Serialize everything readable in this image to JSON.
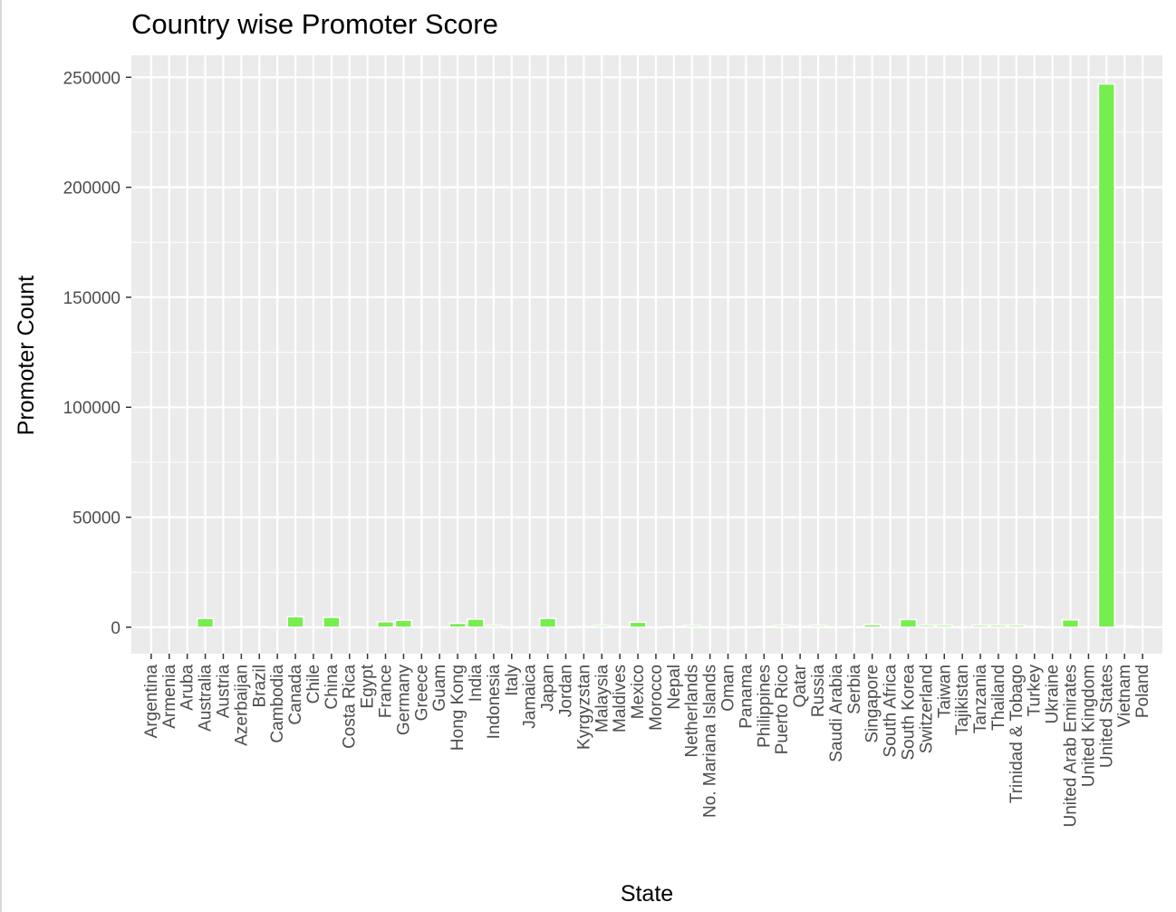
{
  "chart_data": {
    "type": "bar",
    "title": "Country wise Promoter Score",
    "xlabel": "State",
    "ylabel": "Promoter Count",
    "ylim": [
      -12000,
      260000
    ],
    "yticks": [
      0,
      50000,
      100000,
      150000,
      200000,
      250000
    ],
    "ytick_labels": [
      "0",
      "50000",
      "100000",
      "150000",
      "200000",
      "250000"
    ],
    "grid": true,
    "legend": "none",
    "bar_color": "#76ee4e",
    "bar_outline": "#ffffff",
    "panel_background": "#ebebeb",
    "grid_color": "#ffffff",
    "categories": [
      "Argentina",
      "Armenia",
      "Aruba",
      "Australia",
      "Austria",
      "Azerbaijan",
      "Brazil",
      "Cambodia",
      "Canada",
      "Chile",
      "China",
      "Costa Rica",
      "Egypt",
      "France",
      "Germany",
      "Greece",
      "Guam",
      "Hong Kong",
      "India",
      "Indonesia",
      "Italy",
      "Jamaica",
      "Japan",
      "Jordan",
      "Kyrgyzstan",
      "Malaysia",
      "Maldives",
      "Mexico",
      "Morocco",
      "Nepal",
      "Netherlands",
      "No. Mariana Islands",
      "Oman",
      "Panama",
      "Philippines",
      "Puerto Rico",
      "Qatar",
      "Russia",
      "Saudi Arabia",
      "Serbia",
      "Singapore",
      "South Africa",
      "South Korea",
      "Switzerland",
      "Taiwan",
      "Tajikistan",
      "Tanzania",
      "Thailand",
      "Trinidad & Tobago",
      "Turkey",
      "Ukraine",
      "United Arab Emirates",
      "United Kingdom",
      "United States",
      "Vietnam",
      "Poland"
    ],
    "values": [
      0,
      100,
      0,
      4000,
      0,
      200,
      300,
      0,
      4800,
      0,
      4500,
      0,
      0,
      2500,
      3200,
      0,
      0,
      1800,
      3700,
      800,
      0,
      0,
      4000,
      0,
      200,
      800,
      200,
      2300,
      0,
      300,
      800,
      0,
      0,
      0,
      300,
      800,
      300,
      800,
      0,
      200,
      1200,
      0,
      3500,
      900,
      900,
      0,
      900,
      900,
      900,
      300,
      0,
      3400,
      200,
      247000,
      600,
      300
    ]
  }
}
